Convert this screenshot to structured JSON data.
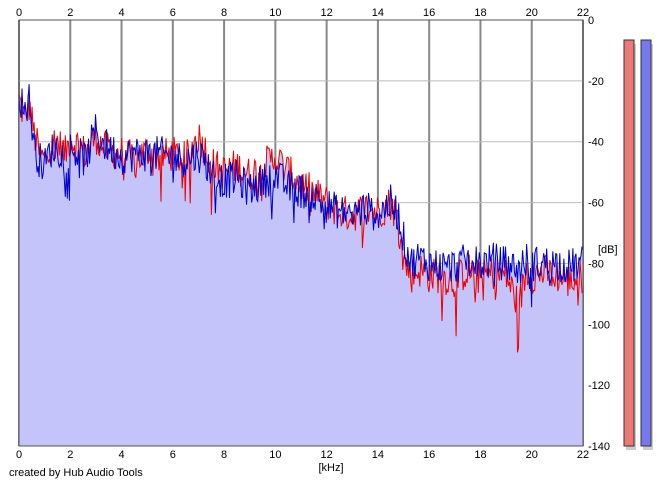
{
  "chart_data": {
    "type": "area",
    "xlabel": "[kHz]",
    "ylabel": "[dB]",
    "xlim": [
      0,
      22
    ],
    "ylim": [
      -140,
      0
    ],
    "x_ticks": [
      0,
      2,
      4,
      6,
      8,
      10,
      12,
      14,
      16,
      18,
      20,
      22
    ],
    "y_ticks": [
      0,
      -20,
      -40,
      -60,
      -80,
      -100,
      -120,
      -140
    ],
    "grid": true,
    "colors": {
      "fill": "#c4c4fa",
      "left_channel": "#ee0000",
      "right_channel": "#0000cc",
      "grid_major": "#888888",
      "grid_minor": "#bbbbbb"
    },
    "series": [
      {
        "color": "#ee0000",
        "x": [
          0,
          0.2,
          0.4,
          0.6,
          0.8,
          1.0,
          1.2,
          1.5,
          1.8,
          2.0,
          2.3,
          2.6,
          3.0,
          3.2,
          3.5,
          4.0,
          4.5,
          5.0,
          5.5,
          6.0,
          6.5,
          7.0,
          7.3,
          7.6,
          8.0,
          8.5,
          9.0,
          9.5,
          10.0,
          10.5,
          11.0,
          11.5,
          12.0,
          12.5,
          13.0,
          13.5,
          14.0,
          14.5,
          14.8,
          15.0,
          15.3,
          15.6,
          16.0,
          16.5,
          17.0,
          17.5,
          18.0,
          18.5,
          19.0,
          19.5,
          19.8,
          20.0,
          20.5,
          21.0,
          21.5,
          22.0
        ],
        "y": [
          -26,
          -32,
          -28,
          -38,
          -44,
          -46,
          -41,
          -40,
          -44,
          -39,
          -41,
          -44,
          -38,
          -41,
          -43,
          -44,
          -46,
          -43,
          -45,
          -44,
          -46,
          -38,
          -43,
          -48,
          -50,
          -48,
          -51,
          -48,
          -45,
          -50,
          -54,
          -57,
          -60,
          -63,
          -64,
          -62,
          -63,
          -60,
          -66,
          -79,
          -84,
          -82,
          -84,
          -84,
          -86,
          -82,
          -85,
          -83,
          -84,
          -94,
          -82,
          -84,
          -83,
          -84,
          -86,
          -84
        ]
      },
      {
        "color": "#0000cc",
        "x": [
          0,
          0.2,
          0.4,
          0.6,
          0.8,
          1.0,
          1.2,
          1.5,
          1.8,
          2.0,
          2.3,
          2.6,
          3.0,
          3.2,
          3.5,
          4.0,
          4.5,
          5.0,
          5.5,
          6.0,
          6.5,
          7.0,
          7.3,
          7.6,
          8.0,
          8.5,
          9.0,
          9.5,
          10.0,
          10.5,
          11.0,
          11.5,
          12.0,
          12.5,
          13.0,
          13.5,
          14.0,
          14.5,
          14.8,
          15.0,
          15.3,
          15.6,
          16.0,
          16.5,
          17.0,
          17.5,
          18.0,
          18.5,
          19.0,
          19.5,
          19.8,
          20.0,
          20.5,
          21.0,
          21.5,
          22.0
        ],
        "y": [
          -24,
          -30,
          -26,
          -42,
          -46,
          -48,
          -43,
          -42,
          -45,
          -42,
          -44,
          -46,
          -36,
          -40,
          -42,
          -45,
          -44,
          -44,
          -44,
          -45,
          -46,
          -44,
          -47,
          -51,
          -53,
          -52,
          -56,
          -53,
          -51,
          -55,
          -56,
          -58,
          -61,
          -63,
          -64,
          -62,
          -64,
          -60,
          -64,
          -72,
          -80,
          -78,
          -80,
          -81,
          -81,
          -79,
          -80,
          -79,
          -80,
          -82,
          -79,
          -80,
          -80,
          -80,
          -81,
          -80
        ]
      }
    ],
    "level_meters": [
      {
        "color": "#ee7777"
      },
      {
        "color": "#7777ee"
      }
    ]
  },
  "footer": {
    "credit": "created by Hub Audio Tools"
  }
}
